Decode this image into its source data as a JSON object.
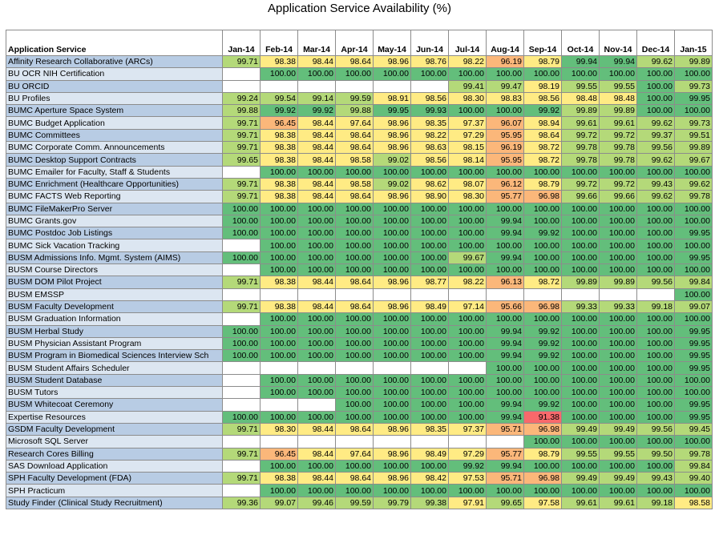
{
  "chart_data": {
    "type": "heatmap",
    "title": "Application Service Availability (%)",
    "row_header": "Application Service",
    "columns": [
      "Jan-14",
      "Feb-14",
      "Mar-14",
      "Apr-14",
      "May-14",
      "Jun-14",
      "Jul-14",
      "Aug-14",
      "Sep-14",
      "Oct-14",
      "Nov-14",
      "Dec-14",
      "Jan-15"
    ],
    "colors": {
      "green": "#63be7b",
      "light_green": "#b4d979",
      "yellow": "#ffeb84",
      "orange": "#fbb77a",
      "red": "#f8696b",
      "empty": "#ffffff"
    },
    "rows": [
      {
        "name": "Affinity Research Collaborative (ARCs)",
        "values": [
          "99.71",
          "98.38",
          "98.44",
          "98.64",
          "98.96",
          "98.76",
          "98.22",
          "96.19",
          "98.79",
          "99.94",
          "99.94",
          "99.62",
          "99.89"
        ]
      },
      {
        "name": "BU OCR NIH Certification",
        "values": [
          "",
          "100.00",
          "100.00",
          "100.00",
          "100.00",
          "100.00",
          "100.00",
          "100.00",
          "100.00",
          "100.00",
          "100.00",
          "100.00",
          "100.00"
        ]
      },
      {
        "name": "BU ORCID",
        "values": [
          "",
          "",
          "",
          "",
          "",
          "",
          "99.41",
          "99.47",
          "98.19",
          "99.55",
          "99.55",
          "100.00",
          "99.73"
        ]
      },
      {
        "name": "BU Profiles",
        "values": [
          "99.24",
          "99.54",
          "99.14",
          "99.59",
          "98.91",
          "98.56",
          "98.30",
          "98.83",
          "98.56",
          "98.48",
          "98.48",
          "100.00",
          "99.95"
        ]
      },
      {
        "name": "BUMC Aperture Space System",
        "values": [
          "99.88",
          "99.92",
          "99.92",
          "99.88",
          "99.95",
          "99.93",
          "100.00",
          "100.00",
          "99.92",
          "99.89",
          "99.89",
          "100.00",
          "100.00"
        ]
      },
      {
        "name": "BUMC Budget Application",
        "values": [
          "99.71",
          "96.45",
          "98.44",
          "97.64",
          "98.96",
          "98.35",
          "97.37",
          "96.07",
          "98.94",
          "99.61",
          "99.61",
          "99.62",
          "99.73"
        ]
      },
      {
        "name": "BUMC Committees",
        "values": [
          "99.71",
          "98.38",
          "98.44",
          "98.64",
          "98.96",
          "98.22",
          "97.29",
          "95.95",
          "98.64",
          "99.72",
          "99.72",
          "99.37",
          "99.51"
        ]
      },
      {
        "name": "BUMC Corporate Comm. Announcements",
        "values": [
          "99.71",
          "98.38",
          "98.44",
          "98.64",
          "98.96",
          "98.63",
          "98.15",
          "96.19",
          "98.72",
          "99.78",
          "99.78",
          "99.56",
          "99.89"
        ]
      },
      {
        "name": "BUMC Desktop Support Contracts",
        "values": [
          "99.65",
          "98.38",
          "98.44",
          "98.58",
          "99.02",
          "98.56",
          "98.14",
          "95.95",
          "98.72",
          "99.78",
          "99.78",
          "99.62",
          "99.67"
        ]
      },
      {
        "name": "BUMC Emailer for Faculty, Staff & Students",
        "values": [
          "",
          "100.00",
          "100.00",
          "100.00",
          "100.00",
          "100.00",
          "100.00",
          "100.00",
          "100.00",
          "100.00",
          "100.00",
          "100.00",
          "100.00"
        ]
      },
      {
        "name": "BUMC Enrichment (Healthcare Opportunities)",
        "values": [
          "99.71",
          "98.38",
          "98.44",
          "98.58",
          "99.02",
          "98.62",
          "98.07",
          "96.12",
          "98.79",
          "99.72",
          "99.72",
          "99.43",
          "99.62"
        ]
      },
      {
        "name": "BUMC FACTS Web Reporting",
        "values": [
          "99.71",
          "98.38",
          "98.44",
          "98.64",
          "98.96",
          "98.90",
          "98.30",
          "95.77",
          "96.98",
          "99.66",
          "99.66",
          "99.62",
          "99.78"
        ]
      },
      {
        "name": "BUMC FileMakerPro Server",
        "values": [
          "100.00",
          "100.00",
          "100.00",
          "100.00",
          "100.00",
          "100.00",
          "100.00",
          "100.00",
          "100.00",
          "100.00",
          "100.00",
          "100.00",
          "100.00"
        ]
      },
      {
        "name": "BUMC Grants.gov",
        "values": [
          "100.00",
          "100.00",
          "100.00",
          "100.00",
          "100.00",
          "100.00",
          "100.00",
          "99.94",
          "100.00",
          "100.00",
          "100.00",
          "100.00",
          "100.00"
        ]
      },
      {
        "name": "BUMC Postdoc Job Listings",
        "values": [
          "100.00",
          "100.00",
          "100.00",
          "100.00",
          "100.00",
          "100.00",
          "100.00",
          "99.94",
          "99.92",
          "100.00",
          "100.00",
          "100.00",
          "99.95"
        ]
      },
      {
        "name": "BUMC Sick Vacation Tracking",
        "values": [
          "",
          "100.00",
          "100.00",
          "100.00",
          "100.00",
          "100.00",
          "100.00",
          "100.00",
          "100.00",
          "100.00",
          "100.00",
          "100.00",
          "100.00"
        ]
      },
      {
        "name": "BUSM Admissions Info. Mgmt. System (AIMS)",
        "values": [
          "100.00",
          "100.00",
          "100.00",
          "100.00",
          "100.00",
          "100.00",
          "99.67",
          "99.94",
          "100.00",
          "100.00",
          "100.00",
          "100.00",
          "99.95"
        ]
      },
      {
        "name": "BUSM Course Directors",
        "values": [
          "",
          "100.00",
          "100.00",
          "100.00",
          "100.00",
          "100.00",
          "100.00",
          "100.00",
          "100.00",
          "100.00",
          "100.00",
          "100.00",
          "100.00"
        ]
      },
      {
        "name": "BUSM DOM Pilot Project",
        "values": [
          "99.71",
          "98.38",
          "98.44",
          "98.64",
          "98.96",
          "98.77",
          "98.22",
          "96.13",
          "98.72",
          "99.89",
          "99.89",
          "99.56",
          "99.84"
        ]
      },
      {
        "name": "BUSM EMSSP",
        "values": [
          "",
          "",
          "",
          "",
          "",
          "",
          "",
          "",
          "",
          "",
          "",
          "",
          "100.00"
        ]
      },
      {
        "name": "BUSM Faculty Development",
        "values": [
          "99.71",
          "98.38",
          "98.44",
          "98.64",
          "98.96",
          "98.49",
          "97.14",
          "95.66",
          "96.98",
          "99.33",
          "99.33",
          "99.18",
          "99.07"
        ]
      },
      {
        "name": "BUSM Graduation Information",
        "values": [
          "",
          "100.00",
          "100.00",
          "100.00",
          "100.00",
          "100.00",
          "100.00",
          "100.00",
          "100.00",
          "100.00",
          "100.00",
          "100.00",
          "100.00"
        ]
      },
      {
        "name": "BUSM Herbal Study",
        "values": [
          "100.00",
          "100.00",
          "100.00",
          "100.00",
          "100.00",
          "100.00",
          "100.00",
          "99.94",
          "99.92",
          "100.00",
          "100.00",
          "100.00",
          "99.95"
        ]
      },
      {
        "name": "BUSM Physician Assistant Program",
        "values": [
          "100.00",
          "100.00",
          "100.00",
          "100.00",
          "100.00",
          "100.00",
          "100.00",
          "99.94",
          "99.92",
          "100.00",
          "100.00",
          "100.00",
          "99.95"
        ]
      },
      {
        "name": "BUSM Program in Biomedical Sciences Interview Sch",
        "values": [
          "100.00",
          "100.00",
          "100.00",
          "100.00",
          "100.00",
          "100.00",
          "100.00",
          "99.94",
          "99.92",
          "100.00",
          "100.00",
          "100.00",
          "99.95"
        ]
      },
      {
        "name": "BUSM Student Affairs Scheduler",
        "values": [
          "",
          "",
          "",
          "",
          "",
          "",
          "",
          "100.00",
          "100.00",
          "100.00",
          "100.00",
          "100.00",
          "99.95"
        ]
      },
      {
        "name": "BUSM Student Database",
        "values": [
          "",
          "100.00",
          "100.00",
          "100.00",
          "100.00",
          "100.00",
          "100.00",
          "100.00",
          "100.00",
          "100.00",
          "100.00",
          "100.00",
          "100.00"
        ]
      },
      {
        "name": "BUSM Tutors",
        "values": [
          "",
          "100.00",
          "100.00",
          "100.00",
          "100.00",
          "100.00",
          "100.00",
          "100.00",
          "100.00",
          "100.00",
          "100.00",
          "100.00",
          "100.00"
        ]
      },
      {
        "name": "BUSM Whitecoat Ceremony",
        "values": [
          "",
          "",
          "",
          "100.00",
          "100.00",
          "100.00",
          "100.00",
          "99.94",
          "99.92",
          "100.00",
          "100.00",
          "100.00",
          "99.95"
        ]
      },
      {
        "name": "Expertise Resources",
        "values": [
          "100.00",
          "100.00",
          "100.00",
          "100.00",
          "100.00",
          "100.00",
          "100.00",
          "99.94",
          "91.38",
          "100.00",
          "100.00",
          "100.00",
          "99.95"
        ]
      },
      {
        "name": "GSDM Faculty Development",
        "values": [
          "99.71",
          "98.30",
          "98.44",
          "98.64",
          "98.96",
          "98.35",
          "97.37",
          "95.71",
          "96.98",
          "99.49",
          "99.49",
          "99.56",
          "99.45"
        ]
      },
      {
        "name": "Microsoft SQL Server",
        "values": [
          "",
          "",
          "",
          "",
          "",
          "",
          "",
          "",
          "100.00",
          "100.00",
          "100.00",
          "100.00",
          "100.00"
        ]
      },
      {
        "name": "Research Cores Billing",
        "values": [
          "99.71",
          "96.45",
          "98.44",
          "97.64",
          "98.96",
          "98.49",
          "97.29",
          "95.77",
          "98.79",
          "99.55",
          "99.55",
          "99.50",
          "99.78"
        ]
      },
      {
        "name": "SAS Download Application",
        "values": [
          "",
          "100.00",
          "100.00",
          "100.00",
          "100.00",
          "100.00",
          "99.92",
          "99.94",
          "100.00",
          "100.00",
          "100.00",
          "100.00",
          "99.84"
        ]
      },
      {
        "name": "SPH Faculty Development (FDA)",
        "values": [
          "99.71",
          "98.38",
          "98.44",
          "98.64",
          "98.96",
          "98.42",
          "97.53",
          "95.71",
          "96.98",
          "99.49",
          "99.49",
          "99.43",
          "99.40"
        ]
      },
      {
        "name": "SPH Practicum",
        "values": [
          "",
          "100.00",
          "100.00",
          "100.00",
          "100.00",
          "100.00",
          "100.00",
          "100.00",
          "100.00",
          "100.00",
          "100.00",
          "100.00",
          "100.00"
        ]
      },
      {
        "name": "Study Finder (Clinical Study Recruitment)",
        "values": [
          "99.36",
          "99.07",
          "99.46",
          "99.59",
          "99.79",
          "99.38",
          "97.91",
          "99.65",
          "97.58",
          "99.61",
          "99.61",
          "99.18",
          "98.58"
        ]
      }
    ]
  }
}
